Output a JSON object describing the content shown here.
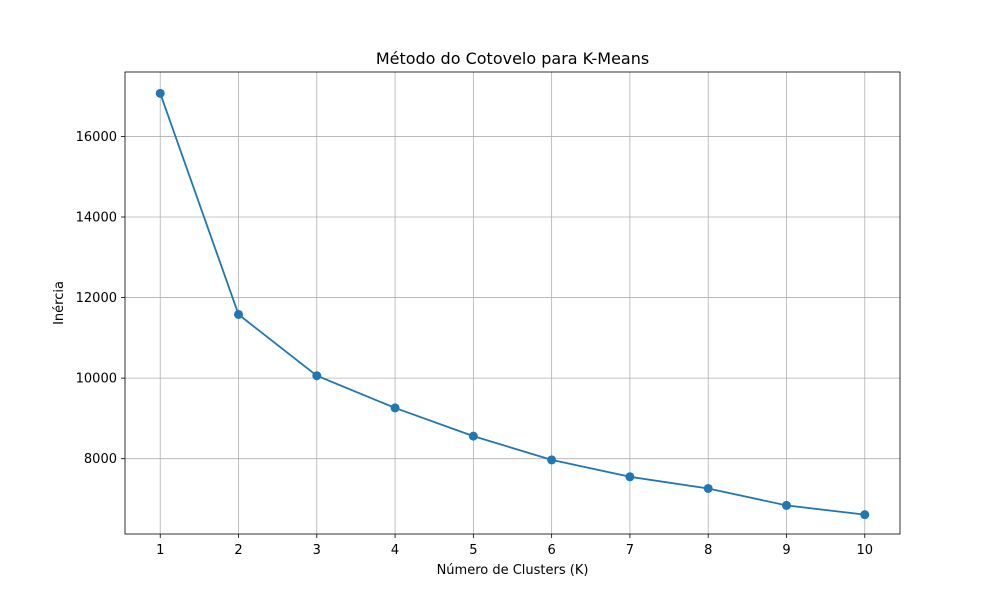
{
  "chart_data": {
    "type": "line",
    "title": "Método do Cotovelo para K-Means",
    "xlabel": "Número de Clusters (K)",
    "ylabel": "Inércia",
    "x": [
      1,
      2,
      3,
      4,
      5,
      6,
      7,
      8,
      9,
      10
    ],
    "x_ticks": [
      "1",
      "2",
      "3",
      "4",
      "5",
      "6",
      "7",
      "8",
      "9",
      "10"
    ],
    "y_ticks": [
      8000,
      10000,
      12000,
      14000,
      16000
    ],
    "series": [
      {
        "values": [
          17070,
          11580,
          10060,
          9260,
          8560,
          7970,
          7550,
          7260,
          6840,
          6610
        ],
        "color": "#1f77b4",
        "marker": "circle"
      }
    ],
    "xlim": [
      0.55,
      10.45
    ],
    "ylim": [
      6130,
      17600
    ],
    "grid": true,
    "legend": "none"
  }
}
